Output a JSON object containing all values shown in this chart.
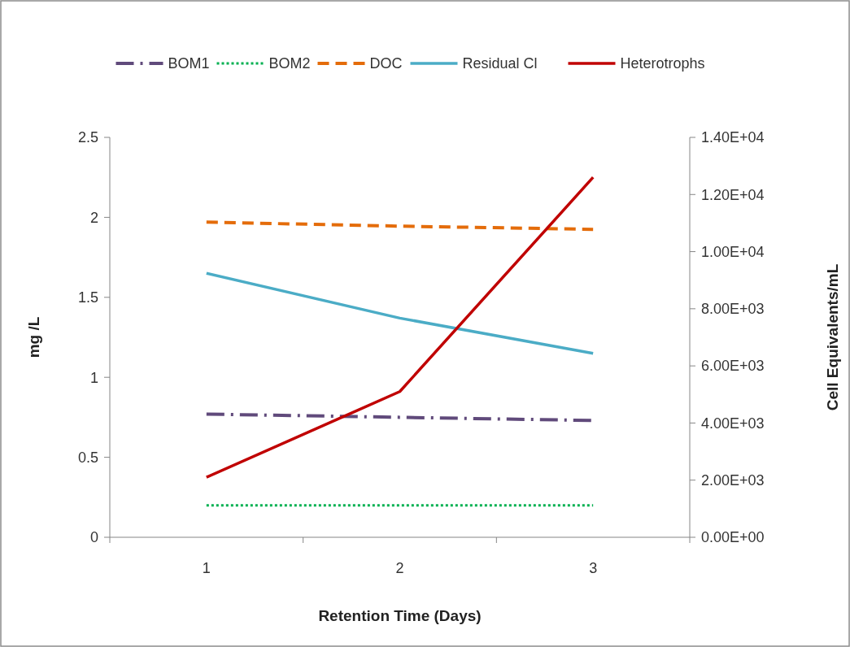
{
  "chart_data": {
    "type": "line",
    "xlabel": "Retention Time (Days)",
    "ylabel": "mg /L",
    "y2label": "Cell Equivalents/mL",
    "categories": [
      "1",
      "2",
      "3"
    ],
    "ylim": [
      0,
      2.5
    ],
    "yticks": [
      0,
      0.5,
      1,
      1.5,
      2,
      2.5
    ],
    "y2lim": [
      0,
      14000
    ],
    "y2ticks": [
      {
        "value": 0,
        "label": "0.00E+00"
      },
      {
        "value": 2000,
        "label": "2.00E+03"
      },
      {
        "value": 4000,
        "label": "4.00E+03"
      },
      {
        "value": 6000,
        "label": "6.00E+03"
      },
      {
        "value": 8000,
        "label": "8.00E+03"
      },
      {
        "value": 10000,
        "label": "1.00E+04"
      },
      {
        "value": 12000,
        "label": "1.20E+04"
      },
      {
        "value": 14000,
        "label": "1.40E+04"
      }
    ],
    "grid": false,
    "legend": "top",
    "marker": "none",
    "series": [
      {
        "name": "BOM1",
        "color": "#604a7b",
        "line_style": "dashdot",
        "values": [
          0.77,
          0.75,
          0.73
        ]
      },
      {
        "name": "BOM2",
        "color": "#00b050",
        "line_style": "dotted",
        "values": [
          0.2,
          0.2,
          0.2
        ]
      },
      {
        "name": "DOC",
        "color": "#e46c0a",
        "line_style": "dashed",
        "values": [
          1.97,
          1.945,
          1.925
        ]
      },
      {
        "name": "Residual Cl",
        "color": "#4bacc6",
        "line_style": "solid",
        "values": [
          1.65,
          1.37,
          1.15
        ]
      },
      {
        "name": "Heterotrophs",
        "color": "#c00000",
        "line_style": "solid",
        "axis": "y2",
        "values": [
          2100,
          5100,
          12600
        ]
      }
    ]
  }
}
